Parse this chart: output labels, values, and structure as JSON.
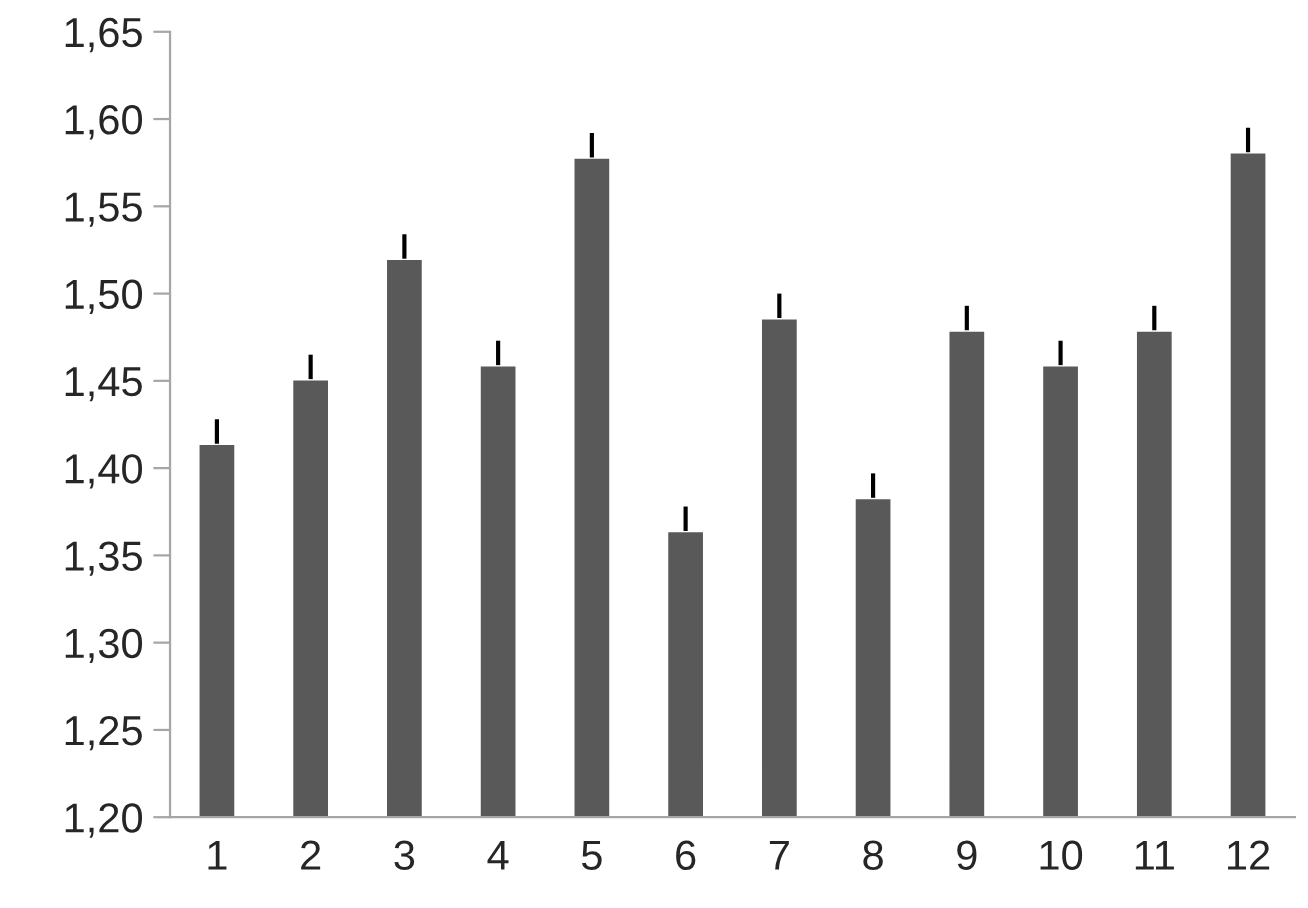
{
  "chart_data": {
    "type": "bar",
    "categories": [
      "1",
      "2",
      "3",
      "4",
      "5",
      "6",
      "7",
      "8",
      "9",
      "10",
      "11",
      "12"
    ],
    "values": [
      1.414,
      1.451,
      1.52,
      1.459,
      1.578,
      1.364,
      1.486,
      1.383,
      1.479,
      1.459,
      1.479,
      1.581
    ],
    "errors": [
      [
        1.414,
        1.428
      ],
      [
        1.451,
        1.465
      ],
      [
        1.52,
        1.534
      ],
      [
        1.459,
        1.473
      ],
      [
        1.578,
        1.592
      ],
      [
        1.364,
        1.378
      ],
      [
        1.486,
        1.5
      ],
      [
        1.383,
        1.397
      ],
      [
        1.479,
        1.493
      ],
      [
        1.459,
        1.473
      ],
      [
        1.479,
        1.493
      ],
      [
        1.581,
        1.595
      ]
    ],
    "color": "#595959",
    "ylim": [
      1.2,
      1.65
    ],
    "yticks": [
      {
        "value": 1.2,
        "label": "1,20"
      },
      {
        "value": 1.25,
        "label": "1,25"
      },
      {
        "value": 1.3,
        "label": "1,30"
      },
      {
        "value": 1.35,
        "label": "1,35"
      },
      {
        "value": 1.4,
        "label": "1,40"
      },
      {
        "value": 1.45,
        "label": "1,45"
      },
      {
        "value": 1.5,
        "label": "1,50"
      },
      {
        "value": 1.55,
        "label": "1,55"
      },
      {
        "value": 1.6,
        "label": "1,60"
      },
      {
        "value": 1.65,
        "label": "1,65"
      }
    ],
    "grid": false,
    "legend": false
  }
}
